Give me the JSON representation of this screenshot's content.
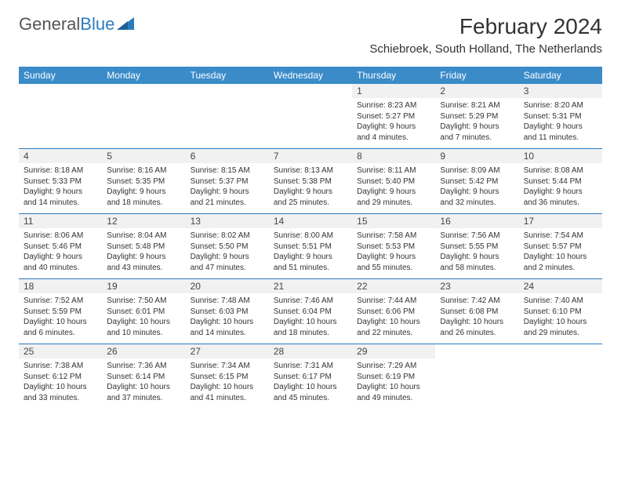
{
  "logo": {
    "text1": "General",
    "text2": "Blue"
  },
  "title": "February 2024",
  "location": "Schiebroek, South Holland, The Netherlands",
  "colors": {
    "header_bg": "#3b8bc9",
    "header_text": "#ffffff",
    "rule": "#2b7bbf",
    "daynum_bg": "#f1f1f1",
    "body_text": "#333333",
    "page_bg": "#ffffff"
  },
  "dow": [
    "Sunday",
    "Monday",
    "Tuesday",
    "Wednesday",
    "Thursday",
    "Friday",
    "Saturday"
  ],
  "weeks": [
    [
      {
        "n": "",
        "sr": "",
        "ss": "",
        "dl": ""
      },
      {
        "n": "",
        "sr": "",
        "ss": "",
        "dl": ""
      },
      {
        "n": "",
        "sr": "",
        "ss": "",
        "dl": ""
      },
      {
        "n": "",
        "sr": "",
        "ss": "",
        "dl": ""
      },
      {
        "n": "1",
        "sr": "Sunrise: 8:23 AM",
        "ss": "Sunset: 5:27 PM",
        "dl": "Daylight: 9 hours and 4 minutes."
      },
      {
        "n": "2",
        "sr": "Sunrise: 8:21 AM",
        "ss": "Sunset: 5:29 PM",
        "dl": "Daylight: 9 hours and 7 minutes."
      },
      {
        "n": "3",
        "sr": "Sunrise: 8:20 AM",
        "ss": "Sunset: 5:31 PM",
        "dl": "Daylight: 9 hours and 11 minutes."
      }
    ],
    [
      {
        "n": "4",
        "sr": "Sunrise: 8:18 AM",
        "ss": "Sunset: 5:33 PM",
        "dl": "Daylight: 9 hours and 14 minutes."
      },
      {
        "n": "5",
        "sr": "Sunrise: 8:16 AM",
        "ss": "Sunset: 5:35 PM",
        "dl": "Daylight: 9 hours and 18 minutes."
      },
      {
        "n": "6",
        "sr": "Sunrise: 8:15 AM",
        "ss": "Sunset: 5:37 PM",
        "dl": "Daylight: 9 hours and 21 minutes."
      },
      {
        "n": "7",
        "sr": "Sunrise: 8:13 AM",
        "ss": "Sunset: 5:38 PM",
        "dl": "Daylight: 9 hours and 25 minutes."
      },
      {
        "n": "8",
        "sr": "Sunrise: 8:11 AM",
        "ss": "Sunset: 5:40 PM",
        "dl": "Daylight: 9 hours and 29 minutes."
      },
      {
        "n": "9",
        "sr": "Sunrise: 8:09 AM",
        "ss": "Sunset: 5:42 PM",
        "dl": "Daylight: 9 hours and 32 minutes."
      },
      {
        "n": "10",
        "sr": "Sunrise: 8:08 AM",
        "ss": "Sunset: 5:44 PM",
        "dl": "Daylight: 9 hours and 36 minutes."
      }
    ],
    [
      {
        "n": "11",
        "sr": "Sunrise: 8:06 AM",
        "ss": "Sunset: 5:46 PM",
        "dl": "Daylight: 9 hours and 40 minutes."
      },
      {
        "n": "12",
        "sr": "Sunrise: 8:04 AM",
        "ss": "Sunset: 5:48 PM",
        "dl": "Daylight: 9 hours and 43 minutes."
      },
      {
        "n": "13",
        "sr": "Sunrise: 8:02 AM",
        "ss": "Sunset: 5:50 PM",
        "dl": "Daylight: 9 hours and 47 minutes."
      },
      {
        "n": "14",
        "sr": "Sunrise: 8:00 AM",
        "ss": "Sunset: 5:51 PM",
        "dl": "Daylight: 9 hours and 51 minutes."
      },
      {
        "n": "15",
        "sr": "Sunrise: 7:58 AM",
        "ss": "Sunset: 5:53 PM",
        "dl": "Daylight: 9 hours and 55 minutes."
      },
      {
        "n": "16",
        "sr": "Sunrise: 7:56 AM",
        "ss": "Sunset: 5:55 PM",
        "dl": "Daylight: 9 hours and 58 minutes."
      },
      {
        "n": "17",
        "sr": "Sunrise: 7:54 AM",
        "ss": "Sunset: 5:57 PM",
        "dl": "Daylight: 10 hours and 2 minutes."
      }
    ],
    [
      {
        "n": "18",
        "sr": "Sunrise: 7:52 AM",
        "ss": "Sunset: 5:59 PM",
        "dl": "Daylight: 10 hours and 6 minutes."
      },
      {
        "n": "19",
        "sr": "Sunrise: 7:50 AM",
        "ss": "Sunset: 6:01 PM",
        "dl": "Daylight: 10 hours and 10 minutes."
      },
      {
        "n": "20",
        "sr": "Sunrise: 7:48 AM",
        "ss": "Sunset: 6:03 PM",
        "dl": "Daylight: 10 hours and 14 minutes."
      },
      {
        "n": "21",
        "sr": "Sunrise: 7:46 AM",
        "ss": "Sunset: 6:04 PM",
        "dl": "Daylight: 10 hours and 18 minutes."
      },
      {
        "n": "22",
        "sr": "Sunrise: 7:44 AM",
        "ss": "Sunset: 6:06 PM",
        "dl": "Daylight: 10 hours and 22 minutes."
      },
      {
        "n": "23",
        "sr": "Sunrise: 7:42 AM",
        "ss": "Sunset: 6:08 PM",
        "dl": "Daylight: 10 hours and 26 minutes."
      },
      {
        "n": "24",
        "sr": "Sunrise: 7:40 AM",
        "ss": "Sunset: 6:10 PM",
        "dl": "Daylight: 10 hours and 29 minutes."
      }
    ],
    [
      {
        "n": "25",
        "sr": "Sunrise: 7:38 AM",
        "ss": "Sunset: 6:12 PM",
        "dl": "Daylight: 10 hours and 33 minutes."
      },
      {
        "n": "26",
        "sr": "Sunrise: 7:36 AM",
        "ss": "Sunset: 6:14 PM",
        "dl": "Daylight: 10 hours and 37 minutes."
      },
      {
        "n": "27",
        "sr": "Sunrise: 7:34 AM",
        "ss": "Sunset: 6:15 PM",
        "dl": "Daylight: 10 hours and 41 minutes."
      },
      {
        "n": "28",
        "sr": "Sunrise: 7:31 AM",
        "ss": "Sunset: 6:17 PM",
        "dl": "Daylight: 10 hours and 45 minutes."
      },
      {
        "n": "29",
        "sr": "Sunrise: 7:29 AM",
        "ss": "Sunset: 6:19 PM",
        "dl": "Daylight: 10 hours and 49 minutes."
      },
      {
        "n": "",
        "sr": "",
        "ss": "",
        "dl": ""
      },
      {
        "n": "",
        "sr": "",
        "ss": "",
        "dl": ""
      }
    ]
  ]
}
